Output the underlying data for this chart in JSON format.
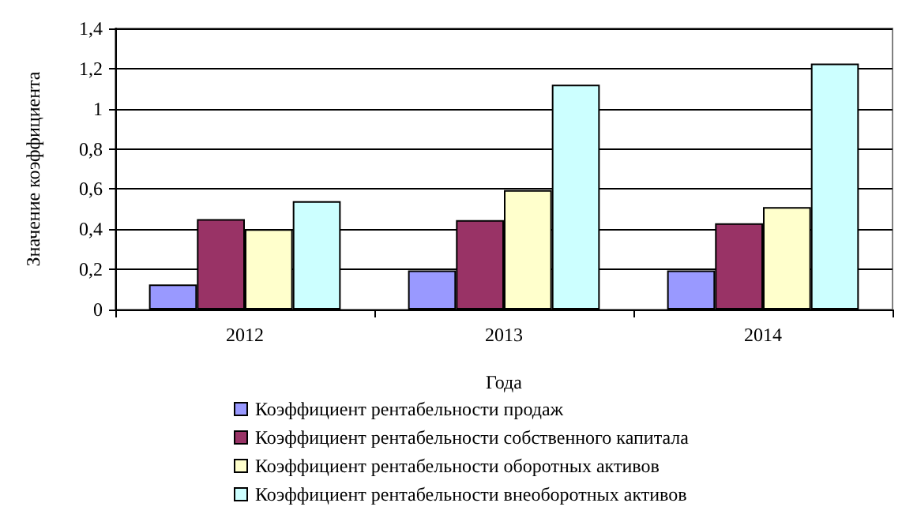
{
  "chart_data": {
    "type": "bar",
    "xlabel": "Года",
    "ylabel": "Значение коэффициента",
    "categories": [
      "2012",
      "2013",
      "2014"
    ],
    "series": [
      {
        "name": "Коэффициент рентабельности продаж",
        "color": "#9999ff",
        "values": [
          0.125,
          0.195,
          0.195
        ]
      },
      {
        "name": "Коэффициент рентабельности собственного капитала",
        "color": "#993366",
        "values": [
          0.45,
          0.445,
          0.43
        ]
      },
      {
        "name": "Коэффициент рентабельности оборотных активов",
        "color": "#ffffcc",
        "values": [
          0.4,
          0.595,
          0.51
        ]
      },
      {
        "name": "Коэффициент рентабельности внеоборотных активов",
        "color": "#ccffff",
        "values": [
          0.54,
          1.12,
          1.225
        ]
      }
    ],
    "ylim": [
      0,
      1.4
    ],
    "yticks": [
      0,
      {
        "value": 0.2,
        "label": "0,2"
      },
      {
        "value": 0.4,
        "label": "0,4"
      },
      {
        "value": 0.6,
        "label": "0,6"
      },
      {
        "value": 0.8,
        "label": "0,8"
      },
      1,
      {
        "value": 1.2,
        "label": "1,2"
      },
      {
        "value": 1.4,
        "label": "1,4"
      }
    ],
    "grid": "y",
    "legend": "bottom"
  }
}
